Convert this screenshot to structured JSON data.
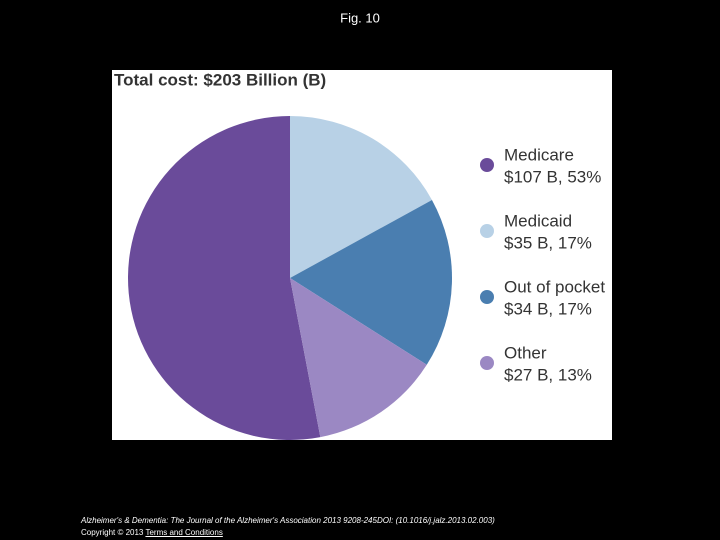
{
  "page_title": "Fig. 10",
  "chart_data": {
    "type": "pie",
    "title": "Total cost: $203 Billion (B)",
    "categories": [
      "Medicare",
      "Medicaid",
      "Out of pocket",
      "Other"
    ],
    "values": [
      53,
      17,
      17,
      13
    ],
    "value_labels": [
      "$107 B, 53%",
      "$35 B, 17%",
      "$34 B, 17%",
      "$27 B, 13%"
    ],
    "colors": [
      "#6a4b9a",
      "#b8d1e6",
      "#4a7eb0",
      "#9b88c3"
    ],
    "legend": "right"
  },
  "footer": {
    "citation": "Alzheimer's & Dementia: The Journal of the Alzheimer's Association 2013 9208-245DOI: (10.1016/j.jalz.2013.02.003)",
    "copyright": "Copyright © 2013",
    "link": "Terms and Conditions"
  }
}
